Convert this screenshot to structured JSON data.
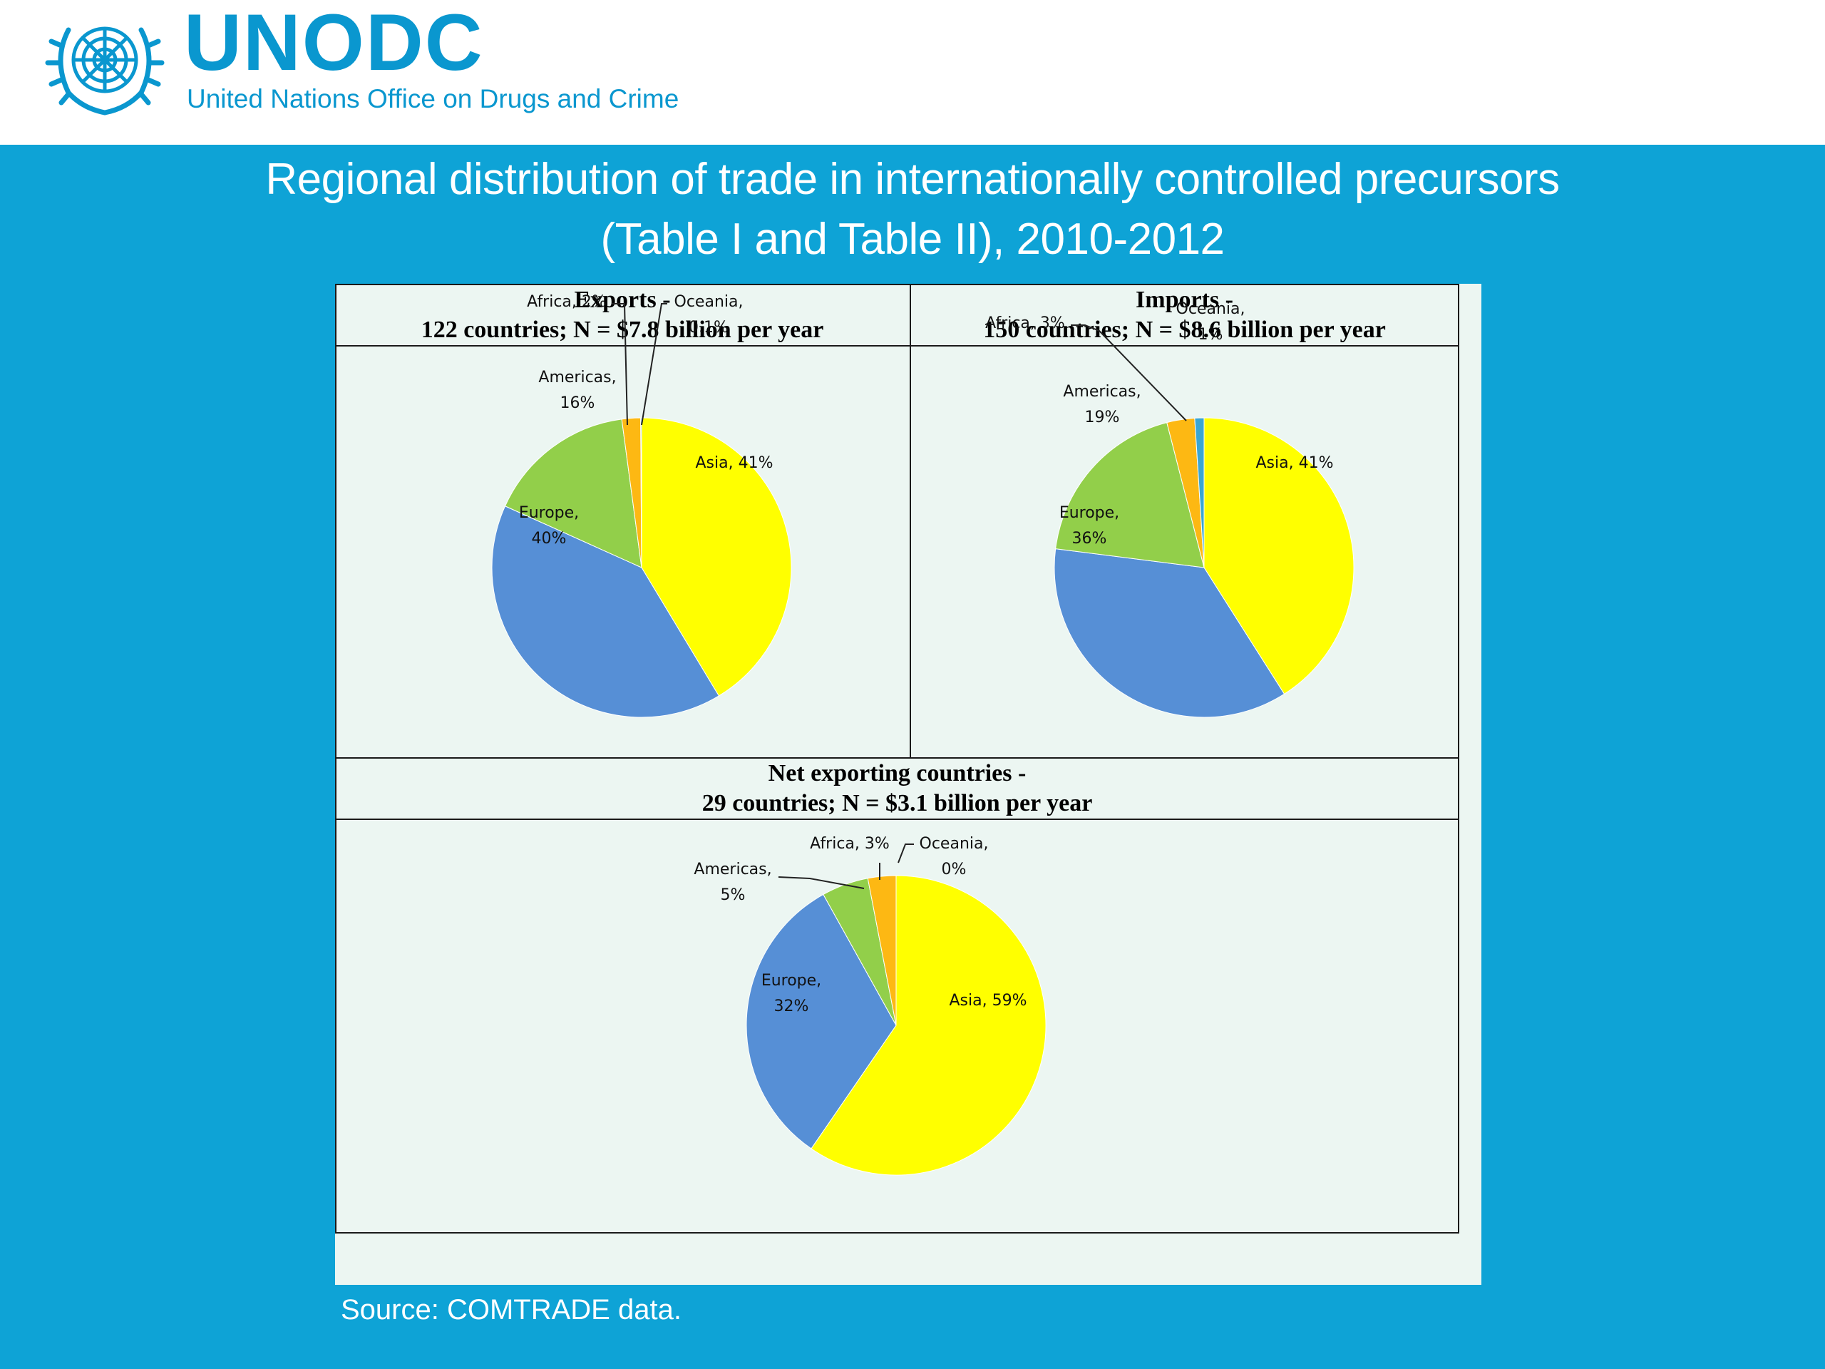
{
  "header": {
    "logo_text": "UNODC",
    "logo_subtitle": "United Nations Office on Drugs and Crime"
  },
  "title": {
    "line1": "Regional distribution of trade in internationally controlled precursors",
    "line2": "(Table I and Table II),  2010-2012"
  },
  "source": "Source: COMTRADE data.",
  "colors": {
    "background": "#0ea3d6",
    "brand": "#0a97cf",
    "panel": "#ecf6f2",
    "Asia": "#ffff00",
    "Europe": "#568fd6",
    "Americas": "#92cf4a",
    "Africa": "#fdb813",
    "Oceania": "#3aa6d2"
  },
  "chart_data": [
    {
      "type": "pie",
      "title_line1": "Exports -",
      "title_line2": "122 countries; N = $7.8 billion per year",
      "labels": [
        "Asia",
        "Europe",
        "Americas",
        "Africa",
        "Oceania"
      ],
      "values": [
        41,
        40,
        16,
        2,
        0.1
      ],
      "label_text": [
        "Asia, 41%",
        "Europe,|40%",
        "Americas,|16%",
        "Africa, 2%",
        "Oceania,|0.1%"
      ]
    },
    {
      "type": "pie",
      "title_line1": "Imports -",
      "title_line2": "150 countries; N = $8.6 billion per year",
      "labels": [
        "Asia",
        "Europe",
        "Americas",
        "Africa",
        "Oceania"
      ],
      "values": [
        41,
        36,
        19,
        3,
        1
      ],
      "label_text": [
        "Asia, 41%",
        "Europe,|36%",
        "Americas,|19%",
        "Africa, 3%",
        "Oceania,|1%"
      ]
    },
    {
      "type": "pie",
      "title_line1": "Net exporting countries -",
      "title_line2": "29 countries; N = $3.1 billion per year",
      "labels": [
        "Asia",
        "Europe",
        "Americas",
        "Africa",
        "Oceania"
      ],
      "values": [
        59,
        32,
        5,
        3,
        0
      ],
      "label_text": [
        "Asia, 59%",
        "Europe,|32%",
        "Americas,|5%",
        "Africa, 3%",
        "Oceania,|0%"
      ]
    }
  ]
}
